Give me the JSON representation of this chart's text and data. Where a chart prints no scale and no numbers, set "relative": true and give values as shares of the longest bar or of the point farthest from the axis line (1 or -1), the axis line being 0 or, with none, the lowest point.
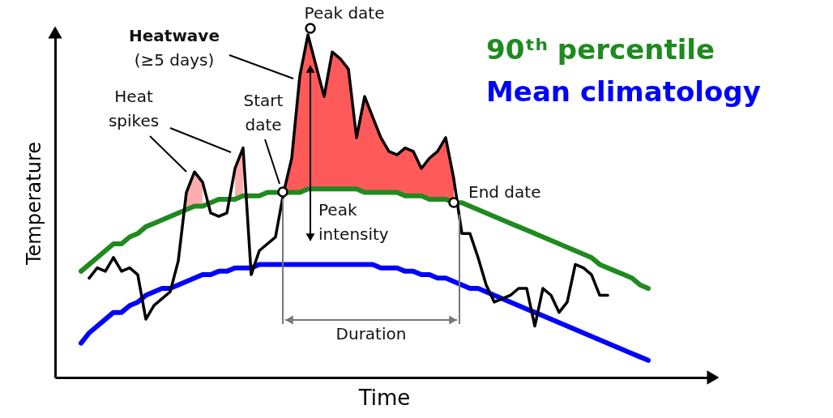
{
  "chart_data": {
    "type": "line",
    "relative": true,
    "xlabel": "Time",
    "ylabel": "Temperature",
    "tick_labels": false,
    "categories": [
      null,
      null,
      null,
      null,
      null,
      null,
      null,
      null,
      null,
      null,
      null,
      null,
      null,
      null,
      null,
      null,
      null,
      null,
      null,
      null,
      null,
      null,
      null,
      null,
      null,
      null,
      null,
      null,
      null,
      null,
      null,
      null,
      null,
      null,
      null,
      null,
      null,
      null,
      null,
      null,
      null,
      null,
      null,
      null,
      null,
      null,
      null,
      null,
      null,
      null,
      null,
      null,
      null,
      null,
      null,
      null,
      null,
      null,
      null,
      null,
      null,
      null,
      null,
      null,
      null,
      null,
      null,
      null,
      null,
      null,
      null
    ],
    "annotations": [
      "Peak date",
      "Heatwave",
      "(≥5 days)",
      "Heat spikes",
      "Start date",
      "End date",
      "Peak intensity",
      "Duration"
    ],
    "series": [
      {
        "name": "90ᵗʰ percentile",
        "color": "#1f8a1f",
        "values": [
          0.31,
          0.33,
          0.35,
          0.37,
          0.39,
          0.39,
          0.41,
          0.42,
          0.44,
          0.45,
          0.46,
          0.47,
          0.48,
          0.49,
          0.5,
          0.5,
          0.51,
          0.52,
          0.52,
          0.52,
          0.53,
          0.53,
          0.53,
          0.54,
          0.54,
          0.54,
          0.54,
          0.54,
          0.55,
          0.55,
          0.55,
          0.55,
          0.55,
          0.55,
          0.55,
          0.54,
          0.54,
          0.54,
          0.54,
          0.54,
          0.53,
          0.53,
          0.53,
          0.52,
          0.52,
          0.52,
          0.51,
          0.51,
          0.5,
          0.49,
          0.48,
          0.47,
          0.46,
          0.45,
          0.44,
          0.43,
          0.42,
          0.41,
          0.4,
          0.39,
          0.38,
          0.37,
          0.36,
          0.35,
          0.33,
          0.32,
          0.31,
          0.3,
          0.29,
          0.27,
          0.26
        ]
      },
      {
        "name": "Mean climatology",
        "color": "#0000ff",
        "values": [
          0.1,
          0.13,
          0.15,
          0.17,
          0.19,
          0.19,
          0.21,
          0.22,
          0.24,
          0.25,
          0.26,
          0.26,
          0.27,
          0.28,
          0.29,
          0.3,
          0.3,
          0.31,
          0.31,
          0.32,
          0.32,
          0.32,
          0.33,
          0.33,
          0.33,
          0.33,
          0.33,
          0.33,
          0.33,
          0.33,
          0.33,
          0.33,
          0.33,
          0.33,
          0.33,
          0.33,
          0.33,
          0.32,
          0.32,
          0.32,
          0.31,
          0.31,
          0.3,
          0.3,
          0.29,
          0.29,
          0.28,
          0.27,
          0.26,
          0.26,
          0.25,
          0.24,
          0.23,
          0.22,
          0.21,
          0.2,
          0.19,
          0.18,
          0.17,
          0.16,
          0.15,
          0.14,
          0.13,
          0.12,
          0.11,
          0.1,
          0.09,
          0.08,
          0.07,
          0.06,
          0.05
        ]
      },
      {
        "color": "#000000",
        "values": [
          null,
          0.29,
          0.32,
          0.31,
          0.35,
          0.31,
          0.32,
          0.3,
          0.17,
          0.21,
          0.23,
          0.25,
          0.34,
          0.54,
          0.6,
          0.57,
          0.48,
          0.47,
          0.48,
          0.61,
          0.67,
          0.3,
          0.37,
          0.39,
          0.41,
          0.54,
          0.64,
          0.88,
          1.0,
          0.91,
          0.82,
          0.95,
          0.93,
          0.9,
          0.7,
          0.82,
          0.76,
          0.7,
          0.66,
          0.65,
          0.67,
          0.66,
          0.61,
          0.64,
          0.66,
          0.7,
          0.58,
          0.42,
          0.42,
          0.35,
          0.27,
          0.22,
          0.23,
          0.24,
          0.26,
          0.26,
          0.15,
          0.26,
          0.24,
          0.19,
          0.22,
          0.33,
          0.32,
          0.3,
          0.24,
          0.24,
          null,
          null,
          null,
          null,
          null
        ],
        "lower": [
          null,
          null,
          null,
          null,
          null,
          null,
          null,
          null,
          null,
          null,
          null,
          null,
          null,
          0.49,
          0.5,
          0.5,
          null,
          null,
          null,
          0.52,
          0.53,
          null,
          null,
          null,
          null,
          0.54,
          0.54,
          0.54,
          0.55,
          0.55,
          0.55,
          0.55,
          0.55,
          0.55,
          0.55,
          0.54,
          0.54,
          0.54,
          0.54,
          0.54,
          0.53,
          0.53,
          0.53,
          0.52,
          0.52,
          0.52,
          0.51,
          null,
          null,
          null,
          null,
          null,
          null,
          null,
          null,
          null,
          null,
          null,
          null,
          null,
          null,
          null,
          null,
          null,
          null,
          null,
          null,
          null,
          null,
          null,
          null
        ],
        "upper": [
          null,
          null,
          null,
          null,
          null,
          null,
          null,
          null,
          null,
          null,
          null,
          null,
          null,
          0.54,
          0.6,
          0.57,
          null,
          null,
          null,
          0.61,
          0.67,
          null,
          null,
          null,
          null,
          0.54,
          0.64,
          0.88,
          1.0,
          0.91,
          0.82,
          0.95,
          0.93,
          0.9,
          0.7,
          0.82,
          0.76,
          0.7,
          0.66,
          0.65,
          0.67,
          0.66,
          0.61,
          0.64,
          0.66,
          0.7,
          0.58,
          null,
          null,
          null,
          null,
          null,
          null,
          null,
          null,
          null,
          null,
          null,
          null,
          null,
          null,
          null,
          null,
          null,
          null,
          null,
          null,
          null,
          null,
          null,
          null
        ]
      }
    ]
  }
}
